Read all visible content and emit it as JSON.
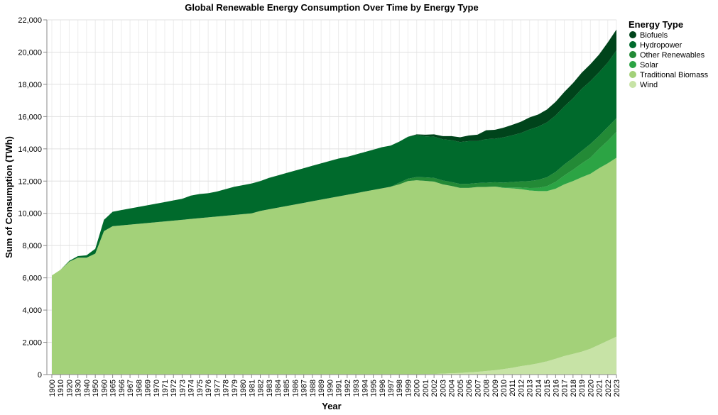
{
  "chart_data": {
    "type": "area",
    "stacked": true,
    "title": "Global Renewable Energy Consumption Over Time by Energy Type",
    "xlabel": "Year",
    "ylabel": "Sum of Consumption (TWh)",
    "ylim": [
      0,
      22000
    ],
    "y_ticks": [
      0,
      2000,
      4000,
      6000,
      8000,
      10000,
      12000,
      14000,
      16000,
      18000,
      20000,
      22000
    ],
    "y_tick_labels": [
      "0",
      "2,000",
      "4,000",
      "6,000",
      "8,000",
      "10,000",
      "12,000",
      "14,000",
      "16,000",
      "18,000",
      "20,000",
      "22,000"
    ],
    "grid": true,
    "legend": {
      "title": "Energy Type",
      "position": "right"
    },
    "categories": [
      "1900",
      "1910",
      "1920",
      "1930",
      "1940",
      "1950",
      "1960",
      "1965",
      "1966",
      "1967",
      "1968",
      "1969",
      "1970",
      "1971",
      "1972",
      "1973",
      "1974",
      "1975",
      "1976",
      "1977",
      "1978",
      "1979",
      "1980",
      "1981",
      "1982",
      "1983",
      "1984",
      "1985",
      "1986",
      "1987",
      "1988",
      "1989",
      "1990",
      "1991",
      "1992",
      "1993",
      "1994",
      "1995",
      "1996",
      "1997",
      "1998",
      "1999",
      "2000",
      "2001",
      "2002",
      "2003",
      "2004",
      "2005",
      "2006",
      "2007",
      "2008",
      "2009",
      "2010",
      "2011",
      "2012",
      "2013",
      "2014",
      "2015",
      "2016",
      "2017",
      "2018",
      "2019",
      "2020",
      "2021",
      "2022",
      "2023"
    ],
    "series": [
      {
        "name": "Wind",
        "color": "#c7e3a6",
        "values": [
          0,
          0,
          0,
          0,
          0,
          0,
          0,
          0,
          0,
          0,
          0,
          0,
          0,
          0,
          0,
          0,
          0,
          0,
          0,
          0,
          0,
          0,
          0,
          0,
          0,
          0,
          0,
          0,
          0,
          0,
          0,
          0,
          0,
          0,
          0,
          0,
          0,
          0,
          0,
          0,
          0,
          0,
          20,
          30,
          40,
          60,
          80,
          100,
          140,
          170,
          220,
          270,
          340,
          420,
          520,
          600,
          700,
          820,
          980,
          1150,
          1280,
          1420,
          1600,
          1850,
          2100,
          2350
        ]
      },
      {
        "name": "Traditional Biomass",
        "color": "#a3d179",
        "values": [
          6150,
          6500,
          7000,
          7250,
          7250,
          7500,
          8900,
          9200,
          9250,
          9300,
          9350,
          9400,
          9450,
          9500,
          9550,
          9600,
          9650,
          9700,
          9750,
          9800,
          9850,
          9900,
          9950,
          10000,
          10150,
          10250,
          10350,
          10450,
          10550,
          10650,
          10750,
          10850,
          10950,
          11050,
          11150,
          11250,
          11350,
          11450,
          11550,
          11650,
          11800,
          12000,
          12030,
          11980,
          11930,
          11740,
          11620,
          11480,
          11440,
          11460,
          11420,
          11390,
          11240,
          11130,
          10980,
          10820,
          10680,
          10560,
          10550,
          10650,
          10720,
          10820,
          10850,
          10950,
          11000,
          11100
        ]
      },
      {
        "name": "Solar",
        "color": "#2ca444",
        "values": [
          0,
          0,
          0,
          0,
          0,
          0,
          0,
          0,
          0,
          0,
          0,
          0,
          0,
          0,
          0,
          0,
          0,
          0,
          0,
          0,
          0,
          0,
          0,
          0,
          0,
          0,
          0,
          0,
          0,
          0,
          0,
          0,
          0,
          0,
          0,
          0,
          0,
          0,
          0,
          0,
          0,
          0,
          0,
          0,
          0,
          0,
          0,
          0,
          0,
          0,
          0,
          0,
          30,
          60,
          100,
          150,
          200,
          300,
          420,
          550,
          700,
          850,
          1000,
          1200,
          1400,
          1600
        ]
      },
      {
        "name": "Other Renewables",
        "color": "#238a36",
        "values": [
          0,
          0,
          0,
          0,
          0,
          0,
          0,
          0,
          0,
          0,
          0,
          0,
          0,
          0,
          0,
          0,
          0,
          0,
          0,
          0,
          0,
          0,
          0,
          0,
          0,
          0,
          0,
          0,
          0,
          0,
          0,
          0,
          0,
          0,
          0,
          0,
          0,
          0,
          0,
          0,
          100,
          150,
          200,
          220,
          230,
          240,
          240,
          240,
          250,
          250,
          260,
          270,
          300,
          330,
          380,
          430,
          500,
          560,
          620,
          680,
          730,
          780,
          850,
          800,
          850,
          850
        ]
      },
      {
        "name": "Hydropower",
        "color": "#006a2c",
        "values": [
          0,
          0,
          50,
          100,
          150,
          300,
          700,
          900,
          950,
          1000,
          1050,
          1100,
          1150,
          1200,
          1250,
          1300,
          1450,
          1500,
          1500,
          1550,
          1650,
          1750,
          1800,
          1850,
          1850,
          1950,
          2000,
          2050,
          2100,
          2150,
          2200,
          2250,
          2300,
          2350,
          2350,
          2400,
          2450,
          2500,
          2550,
          2550,
          2550,
          2600,
          2600,
          2550,
          2550,
          2550,
          2600,
          2600,
          2650,
          2600,
          2700,
          2700,
          2800,
          2900,
          3000,
          3200,
          3300,
          3400,
          3500,
          3600,
          3700,
          3850,
          3900,
          3950,
          4000,
          4200
        ]
      },
      {
        "name": "Biofuels",
        "color": "#00441b",
        "values": [
          0,
          0,
          0,
          0,
          0,
          0,
          0,
          0,
          0,
          0,
          0,
          0,
          0,
          0,
          0,
          0,
          0,
          0,
          0,
          0,
          0,
          0,
          0,
          0,
          0,
          0,
          0,
          0,
          0,
          0,
          0,
          0,
          0,
          0,
          0,
          0,
          0,
          0,
          0,
          0,
          0,
          0,
          50,
          100,
          150,
          200,
          250,
          300,
          350,
          400,
          550,
          550,
          600,
          650,
          700,
          750,
          750,
          800,
          850,
          900,
          950,
          1000,
          1050,
          1100,
          1250,
          1300
        ]
      }
    ],
    "legend_order": [
      "Biofuels",
      "Hydropower",
      "Other Renewables",
      "Solar",
      "Traditional Biomass",
      "Wind"
    ]
  }
}
